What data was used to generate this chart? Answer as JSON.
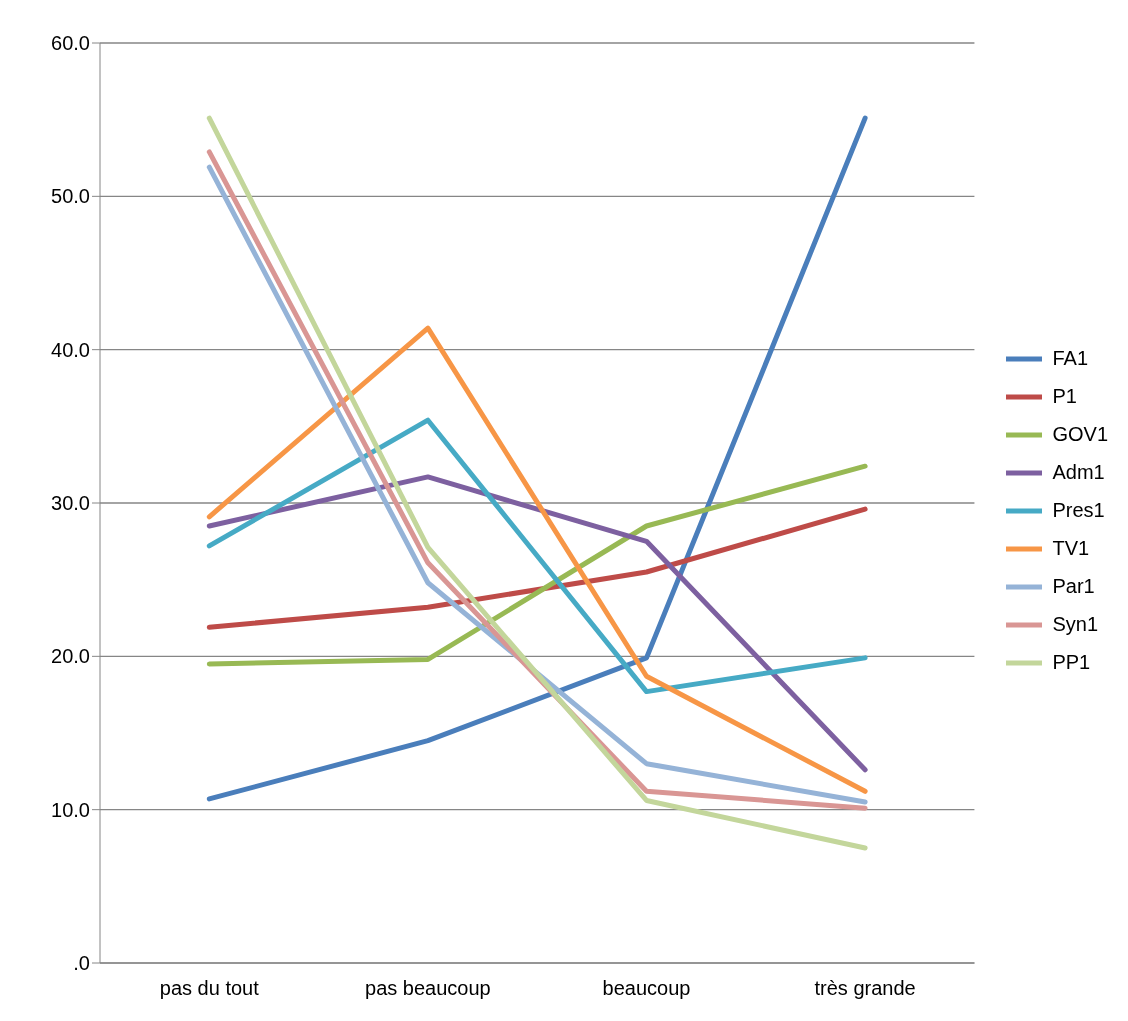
{
  "chart_data": {
    "type": "line",
    "categories": [
      "pas du tout",
      "pas beaucoup",
      "beaucoup",
      "très grande"
    ],
    "series": [
      {
        "name": "FA1",
        "color": "#4a7ebb",
        "values": [
          10.7,
          14.5,
          19.9,
          55.1
        ]
      },
      {
        "name": "P1",
        "color": "#be4b48",
        "values": [
          21.9,
          23.2,
          25.5,
          29.6
        ]
      },
      {
        "name": "GOV1",
        "color": "#98b954",
        "values": [
          19.5,
          19.8,
          28.5,
          32.4
        ]
      },
      {
        "name": "Adm1",
        "color": "#7d60a0",
        "values": [
          28.5,
          31.7,
          27.5,
          12.6
        ]
      },
      {
        "name": "Pres1",
        "color": "#46aac5",
        "values": [
          27.2,
          35.4,
          17.7,
          19.9
        ]
      },
      {
        "name": "TV1",
        "color": "#f79646",
        "values": [
          29.1,
          41.4,
          18.7,
          11.2
        ]
      },
      {
        "name": "Par1",
        "color": "#95b3d7",
        "values": [
          51.9,
          24.8,
          13.0,
          10.5
        ]
      },
      {
        "name": "Syn1",
        "color": "#d99694",
        "values": [
          52.9,
          26.1,
          11.2,
          10.1
        ]
      },
      {
        "name": "PP1",
        "color": "#c3d69b",
        "values": [
          55.1,
          27.1,
          10.6,
          7.5
        ]
      }
    ],
    "ylim": [
      0,
      60
    ],
    "yticks": [
      {
        "value": 0,
        "label": ".0"
      },
      {
        "value": 10,
        "label": "10.0"
      },
      {
        "value": 20,
        "label": "20.0"
      },
      {
        "value": 30,
        "label": "30.0"
      },
      {
        "value": 40,
        "label": "40.0"
      },
      {
        "value": 50,
        "label": "50.0"
      },
      {
        "value": 60,
        "label": "60.0"
      }
    ],
    "grid": "y",
    "legend": "right",
    "marker": "none",
    "line_style": "solid"
  }
}
